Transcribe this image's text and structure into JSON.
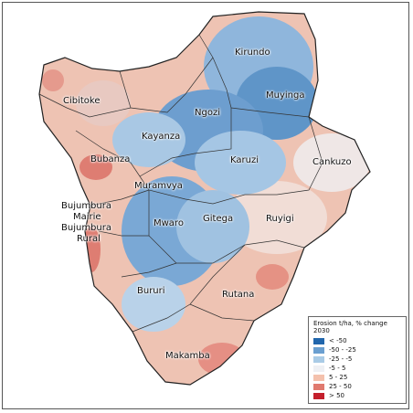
{
  "provinces": [
    {
      "name": "Kirundo"
    },
    {
      "name": "Muyinga"
    },
    {
      "name": "Cibitoke"
    },
    {
      "name": "Ngozi"
    },
    {
      "name": "Kayanza"
    },
    {
      "name": "Bubanza"
    },
    {
      "name": "Karuzi"
    },
    {
      "name": "Cankuzo"
    },
    {
      "name": "Muramvya"
    },
    {
      "name": "Bujumbura"
    },
    {
      "name": "Mairie"
    },
    {
      "name": "Bujumbura"
    },
    {
      "name": "Rural"
    },
    {
      "name": "Mwaro"
    },
    {
      "name": "Gitega"
    },
    {
      "name": "Ruyigi"
    },
    {
      "name": "Bururi"
    },
    {
      "name": "Rutana"
    },
    {
      "name": "Makamba"
    }
  ],
  "legend": {
    "title": "Erosion t/ha, % change 2030",
    "classes": [
      {
        "label": "< -50",
        "color": "#2166ac"
      },
      {
        "label": "-50 - -25",
        "color": "#6a9fd0"
      },
      {
        "label": "-25 - -5",
        "color": "#a9cbe6"
      },
      {
        "label": "-5 - 5",
        "color": "#eef0f4"
      },
      {
        "label": "5 - 25",
        "color": "#f4c1ad"
      },
      {
        "label": "25 - 50",
        "color": "#e07a6f"
      },
      {
        "label": "> 50",
        "color": "#c41f2c"
      }
    ]
  }
}
